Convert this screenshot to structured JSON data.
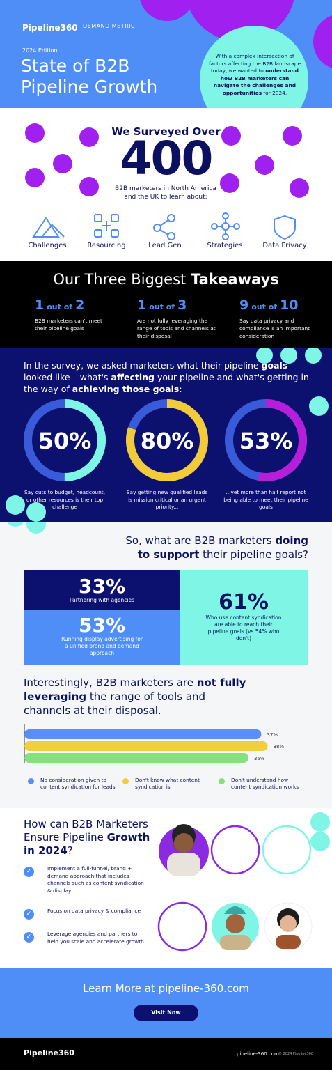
{
  "header": {
    "logo": "Pipeline360",
    "partner": "DEMAND METRIC",
    "edition": "2024 Edition",
    "title_lines": [
      "State of B2B",
      "Pipeline Growth"
    ],
    "intro_parts": [
      {
        "text": "With a complex intersection of factors affecting the B2B landscape today, we wanted to ",
        "bold": false
      },
      {
        "text": "understand how B2B marketers can navigate the challenges and opportunities",
        "bold": true
      },
      {
        "text": " for 2024.",
        "bold": false
      }
    ]
  },
  "survey": {
    "heading": "We Surveyed Over",
    "number": "400",
    "subtext": "B2B marketers in North America and the UK to learn about:",
    "topics": [
      "Challenges",
      "Resourcing",
      "Lead Gen",
      "Strategies",
      "Data Privacy"
    ]
  },
  "takeaways": {
    "title_parts": [
      {
        "text": "Our Three Biggest ",
        "bold": false
      },
      {
        "text": "Takeaways",
        "bold": true
      }
    ],
    "items": [
      {
        "num": "1",
        "of": "out of",
        "den": "2",
        "text": "B2B marketers can't meet their pipeline goals"
      },
      {
        "num": "1",
        "of": "out of",
        "den": "3",
        "text": "Are not fully leveraging the range of tools and channels at their disposal"
      },
      {
        "num": "9",
        "of": "out of",
        "den": "10",
        "text": "Say data privacy and compliance is an important consideration"
      }
    ]
  },
  "affecting": {
    "intro_parts": [
      {
        "text": "In the survey, we asked marketers what their pipeline ",
        "bold": false
      },
      {
        "text": "goals",
        "bold": true
      },
      {
        "text": " looked like – what's ",
        "bold": false
      },
      {
        "text": "affecting",
        "bold": true
      },
      {
        "text": " your pipeline and what's getting in the way of ",
        "bold": false
      },
      {
        "text": "achieving those goals",
        "bold": true
      },
      {
        "text": ":",
        "bold": false
      }
    ],
    "donuts": [
      {
        "value": 50,
        "label": "50%",
        "color": "#7ff5e6",
        "text": "Say cuts to budget, headcount, or other resources is their top challenge"
      },
      {
        "value": 80,
        "label": "80%",
        "color": "#f2cb3a",
        "text": "Say getting new qualified leads is mission critical or an urgent priority..."
      },
      {
        "value": 53,
        "label": "53%",
        "color": "#b51fd9",
        "text": "...yet more than half report not being able to meet their pipeline goals"
      }
    ]
  },
  "support": {
    "heading_parts": [
      {
        "text": "So, what are B2B marketers ",
        "bold": false
      },
      {
        "text": "doing to support",
        "bold": true
      },
      {
        "text": " their pipeline goals?",
        "bold": false
      }
    ],
    "stats": [
      {
        "label": "33%",
        "text": "Partnering with agencies"
      },
      {
        "label": "53%",
        "text": "Running display advertising for a unified brand and demand approach"
      },
      {
        "label": "61%",
        "text": "Who use content syndication are able to reach their pipeline goals (vs 54% who don't)"
      }
    ]
  },
  "tools": {
    "heading_parts": [
      {
        "text": "Interestingly, B2B marketers are ",
        "bold": false
      },
      {
        "text": "not fully leveraging",
        "bold": true
      },
      {
        "text": " the range of tools and channels at their disposal.",
        "bold": false
      }
    ],
    "bars": [
      {
        "name": "No consideration given to content syndication for leads",
        "value": 37,
        "label": "37%",
        "color": "#5b8ff7"
      },
      {
        "name": "Don't know what content syndication is",
        "value": 38,
        "label": "38%",
        "color": "#f0cf3a"
      },
      {
        "name": "Don't understand how content syndication works",
        "value": 35,
        "label": "35%",
        "color": "#86e07e"
      }
    ]
  },
  "growth": {
    "heading_parts": [
      {
        "text": "How can B2B Marketers Ensure Pipeline ",
        "bold": false
      },
      {
        "text": "Growth in 2024",
        "bold": true
      },
      {
        "text": "?",
        "bold": false
      }
    ],
    "items": [
      "Implement a full-funnel, brand + demand approach that includes channels such as content syndication & display",
      "Focus on data privacy & compliance",
      "Leverage agencies and partners to help you scale and accelerate growth"
    ]
  },
  "cta": {
    "text": "Learn More at pipeline-360.com",
    "button": "Visit Now"
  },
  "footer": {
    "logo": "Pipeline360",
    "site": "pipeline-360.com",
    "copyright": "© 2024 Pipeline360"
  }
}
